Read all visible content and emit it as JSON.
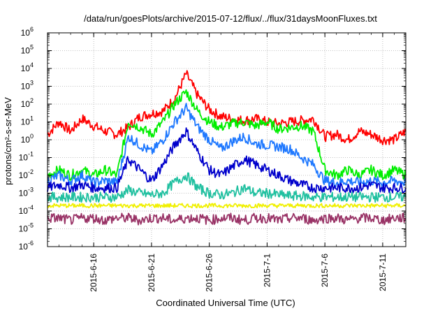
{
  "chart_data": {
    "type": "line",
    "title": "/data/run/goesPlots/archive/2015-07-12/flux/../flux/31daysMoonFluxes.txt",
    "xlabel": "Coordinated Universal Time (UTC)",
    "ylabel": "protons/cm²-s-sr-MeV",
    "y_scale": "log",
    "ylim": [
      1e-06,
      1000000.0
    ],
    "xlim": [
      "2015-06-12",
      "2015-07-13"
    ],
    "grid": true,
    "legend": "none",
    "x_ticks": [
      "2015-6-16",
      "2015-6-21",
      "2015-6-26",
      "2015-7-1",
      "2015-7-6",
      "2015-7-11"
    ],
    "y_ticks": [
      {
        "value": 1e-06,
        "base": "10",
        "exp": "-6"
      },
      {
        "value": 1e-05,
        "base": "10",
        "exp": "-5"
      },
      {
        "value": 0.0001,
        "base": "10",
        "exp": "-4"
      },
      {
        "value": 0.001,
        "base": "10",
        "exp": "-3"
      },
      {
        "value": 0.01,
        "base": "10",
        "exp": "-2"
      },
      {
        "value": 0.1,
        "base": "10",
        "exp": "-1"
      },
      {
        "value": 1,
        "base": "10",
        "exp": "0"
      },
      {
        "value": 10,
        "base": "10",
        "exp": "1"
      },
      {
        "value": 100,
        "base": "10",
        "exp": "2"
      },
      {
        "value": 1000,
        "base": "10",
        "exp": "3"
      },
      {
        "value": 10000,
        "base": "10",
        "exp": "4"
      },
      {
        "value": 100000,
        "base": "10",
        "exp": "5"
      },
      {
        "value": 1000000,
        "base": "10",
        "exp": "6"
      }
    ],
    "series": [
      {
        "color": "#ff0000",
        "x": [
          "2015-06-12",
          "2015-06-13",
          "2015-06-14",
          "2015-06-15",
          "2015-06-16",
          "2015-06-17",
          "2015-06-18",
          "2015-06-19",
          "2015-06-20",
          "2015-06-21",
          "2015-06-22",
          "2015-06-23",
          "2015-06-24",
          "2015-06-25",
          "2015-06-26",
          "2015-06-27",
          "2015-06-28",
          "2015-06-29",
          "2015-06-30",
          "2015-07-01",
          "2015-07-02",
          "2015-07-03",
          "2015-07-04",
          "2015-07-05",
          "2015-07-06",
          "2015-07-07",
          "2015-07-08",
          "2015-07-09",
          "2015-07-10",
          "2015-07-11",
          "2015-07-12",
          "2015-07-13"
        ],
        "y": [
          2,
          10,
          3,
          15,
          6,
          3,
          2,
          5,
          20,
          30,
          40,
          200,
          5000,
          300,
          50,
          20,
          15,
          12,
          15,
          10,
          8,
          10,
          12,
          15,
          1.5,
          2,
          1,
          3,
          2,
          1,
          1,
          3
        ]
      },
      {
        "color": "#00ee00",
        "x": [
          "2015-06-12",
          "2015-06-13",
          "2015-06-14",
          "2015-06-15",
          "2015-06-16",
          "2015-06-17",
          "2015-06-18",
          "2015-06-19",
          "2015-06-20",
          "2015-06-21",
          "2015-06-22",
          "2015-06-23",
          "2015-06-24",
          "2015-06-25",
          "2015-06-26",
          "2015-06-27",
          "2015-06-28",
          "2015-06-29",
          "2015-06-30",
          "2015-07-01",
          "2015-07-02",
          "2015-07-03",
          "2015-07-04",
          "2015-07-05",
          "2015-07-06",
          "2015-07-07",
          "2015-07-08",
          "2015-07-09",
          "2015-07-10",
          "2015-07-11",
          "2015-07-12",
          "2015-07-13"
        ],
        "y": [
          0.01,
          0.02,
          0.01,
          0.02,
          0.01,
          0.02,
          0.01,
          10,
          5,
          2,
          10,
          100,
          500,
          40,
          10,
          5,
          8,
          10,
          6,
          10,
          4,
          5,
          6,
          3,
          0.02,
          0.01,
          0.02,
          0.01,
          0.02,
          0.01,
          0.02,
          0.01
        ]
      },
      {
        "color": "#1e78ff",
        "x": [
          "2015-06-12",
          "2015-06-13",
          "2015-06-14",
          "2015-06-15",
          "2015-06-16",
          "2015-06-17",
          "2015-06-18",
          "2015-06-19",
          "2015-06-20",
          "2015-06-21",
          "2015-06-22",
          "2015-06-23",
          "2015-06-24",
          "2015-06-25",
          "2015-06-26",
          "2015-06-27",
          "2015-06-28",
          "2015-06-29",
          "2015-06-30",
          "2015-07-01",
          "2015-07-02",
          "2015-07-03",
          "2015-07-04",
          "2015-07-05",
          "2015-07-06",
          "2015-07-07",
          "2015-07-08",
          "2015-07-09",
          "2015-07-10",
          "2015-07-11",
          "2015-07-12",
          "2015-07-13"
        ],
        "y": [
          0.005,
          0.01,
          0.005,
          0.01,
          0.004,
          0.005,
          0.004,
          1.5,
          0.5,
          0.2,
          1,
          10,
          60,
          5,
          1,
          0.3,
          0.8,
          1.5,
          0.6,
          0.5,
          0.4,
          0.3,
          0.1,
          0.04,
          0.005,
          0.004,
          0.005,
          0.004,
          0.005,
          0.004,
          0.005,
          0.004
        ]
      },
      {
        "color": "#0000cc",
        "x": [
          "2015-06-12",
          "2015-06-13",
          "2015-06-14",
          "2015-06-15",
          "2015-06-16",
          "2015-06-17",
          "2015-06-18",
          "2015-06-19",
          "2015-06-20",
          "2015-06-21",
          "2015-06-22",
          "2015-06-23",
          "2015-06-24",
          "2015-06-25",
          "2015-06-26",
          "2015-06-27",
          "2015-06-28",
          "2015-06-29",
          "2015-06-30",
          "2015-07-01",
          "2015-07-02",
          "2015-07-03",
          "2015-07-04",
          "2015-07-05",
          "2015-07-06",
          "2015-07-07",
          "2015-07-08",
          "2015-07-09",
          "2015-07-10",
          "2015-07-11",
          "2015-07-12",
          "2015-07-13"
        ],
        "y": [
          0.002,
          0.003,
          0.002,
          0.003,
          0.002,
          0.002,
          0.002,
          0.08,
          0.02,
          0.005,
          0.04,
          0.5,
          3,
          0.2,
          0.02,
          0.01,
          0.03,
          0.08,
          0.04,
          0.02,
          0.01,
          0.005,
          0.003,
          0.002,
          0.002,
          0.002,
          0.002,
          0.002,
          0.003,
          0.002,
          0.002,
          0.002
        ]
      },
      {
        "color": "#20c0a0",
        "x": [
          "2015-06-12",
          "2015-06-13",
          "2015-06-14",
          "2015-06-15",
          "2015-06-16",
          "2015-06-17",
          "2015-06-18",
          "2015-06-19",
          "2015-06-20",
          "2015-06-21",
          "2015-06-22",
          "2015-06-23",
          "2015-06-24",
          "2015-06-25",
          "2015-06-26",
          "2015-06-27",
          "2015-06-28",
          "2015-06-29",
          "2015-06-30",
          "2015-07-01",
          "2015-07-02",
          "2015-07-03",
          "2015-07-04",
          "2015-07-05",
          "2015-07-06",
          "2015-07-07",
          "2015-07-08",
          "2015-07-09",
          "2015-07-10",
          "2015-07-11",
          "2015-07-12",
          "2015-07-13"
        ],
        "y": [
          0.0006,
          0.0006,
          0.0006,
          0.0006,
          0.0006,
          0.0006,
          0.0006,
          0.0015,
          0.001,
          0.0008,
          0.001,
          0.004,
          0.01,
          0.002,
          0.001,
          0.0008,
          0.001,
          0.002,
          0.001,
          0.001,
          0.0008,
          0.0007,
          0.0007,
          0.0006,
          0.0006,
          0.0006,
          0.0006,
          0.0006,
          0.0006,
          0.0006,
          0.0006,
          0.0006
        ]
      },
      {
        "color": "#f0f000",
        "x": [
          "2015-06-12",
          "2015-06-13",
          "2015-06-14",
          "2015-06-15",
          "2015-06-16",
          "2015-06-17",
          "2015-06-18",
          "2015-06-19",
          "2015-06-20",
          "2015-06-21",
          "2015-06-22",
          "2015-06-23",
          "2015-06-24",
          "2015-06-25",
          "2015-06-26",
          "2015-06-27",
          "2015-06-28",
          "2015-06-29",
          "2015-06-30",
          "2015-07-01",
          "2015-07-02",
          "2015-07-03",
          "2015-07-04",
          "2015-07-05",
          "2015-07-06",
          "2015-07-07",
          "2015-07-08",
          "2015-07-09",
          "2015-07-10",
          "2015-07-11",
          "2015-07-12",
          "2015-07-13"
        ],
        "y": [
          0.0002,
          0.0002,
          0.0002,
          0.0002,
          0.0002,
          0.0002,
          0.0002,
          0.0002,
          0.0002,
          0.0002,
          0.0002,
          0.0002,
          0.0002,
          0.0002,
          0.0002,
          0.0002,
          0.0002,
          0.0002,
          0.0002,
          0.0002,
          0.0002,
          0.0002,
          0.0002,
          0.0002,
          0.0002,
          0.0002,
          0.0002,
          0.0002,
          0.0002,
          0.0002,
          0.0002,
          0.0002
        ]
      },
      {
        "color": "#993366",
        "x": [
          "2015-06-12",
          "2015-06-13",
          "2015-06-14",
          "2015-06-15",
          "2015-06-16",
          "2015-06-17",
          "2015-06-18",
          "2015-06-19",
          "2015-06-20",
          "2015-06-21",
          "2015-06-22",
          "2015-06-23",
          "2015-06-24",
          "2015-06-25",
          "2015-06-26",
          "2015-06-27",
          "2015-06-28",
          "2015-06-29",
          "2015-06-30",
          "2015-07-01",
          "2015-07-02",
          "2015-07-03",
          "2015-07-04",
          "2015-07-05",
          "2015-07-06",
          "2015-07-07",
          "2015-07-08",
          "2015-07-09",
          "2015-07-10",
          "2015-07-11",
          "2015-07-12",
          "2015-07-13"
        ],
        "y": [
          4e-05,
          4e-05,
          3e-05,
          4e-05,
          4e-05,
          3e-05,
          4e-05,
          4e-05,
          3e-05,
          4e-05,
          4e-05,
          3e-05,
          4e-05,
          4e-05,
          3e-05,
          4e-05,
          4e-05,
          3e-05,
          4e-05,
          4e-05,
          3e-05,
          4e-05,
          4e-05,
          3e-05,
          4e-05,
          4e-05,
          3e-05,
          4e-05,
          4e-05,
          3e-05,
          4e-05,
          4e-05
        ]
      }
    ]
  }
}
